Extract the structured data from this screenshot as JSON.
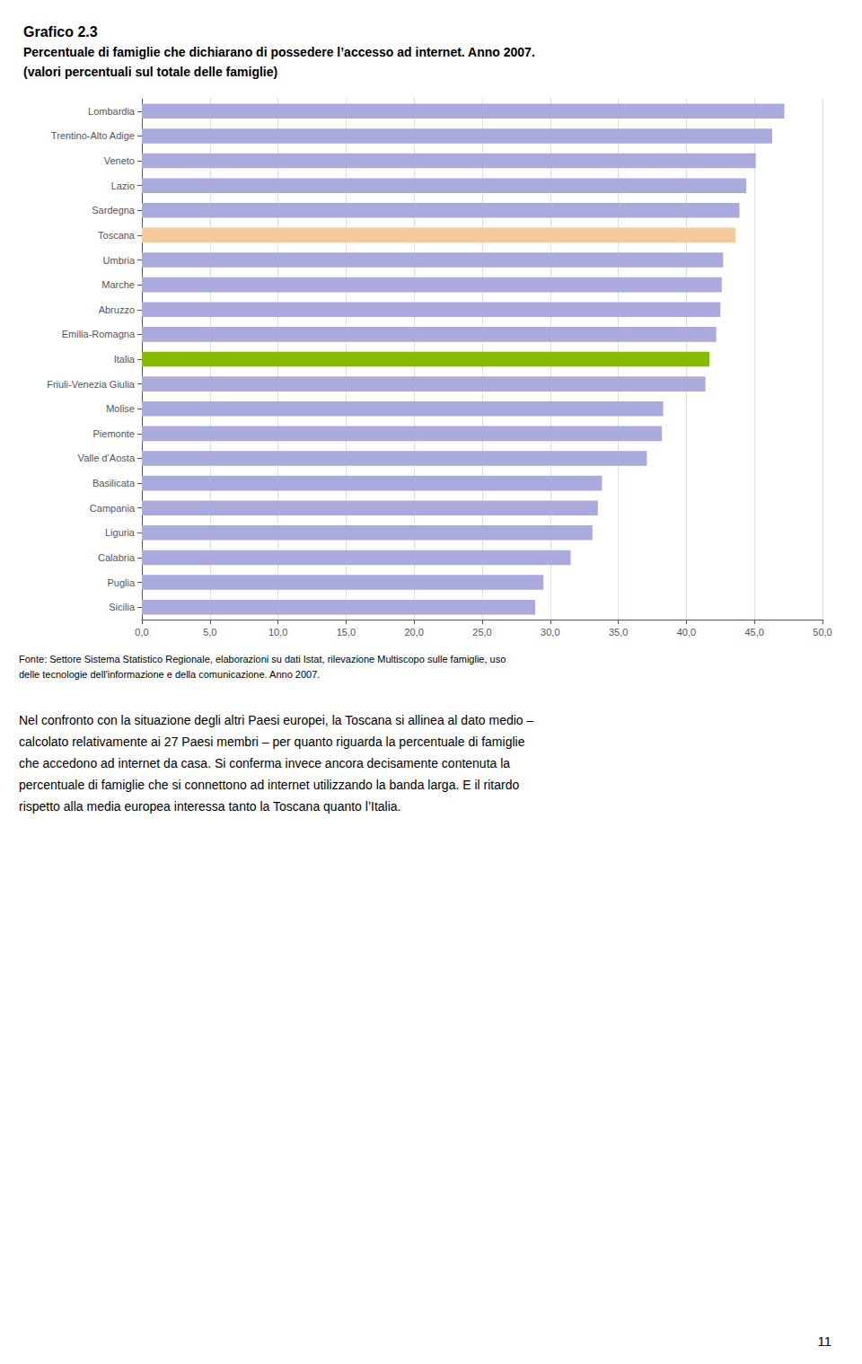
{
  "chart_data": {
    "type": "bar",
    "orientation": "horizontal",
    "title": "Grafico 2.3",
    "subtitle": [
      "Percentuale di famiglie che dichiarano di possedere l’accesso ad internet. Anno 2007.",
      "(valori percentuali sul totale delle famiglie)"
    ],
    "annotations": [
      "Fonte: Settore Sistema Statistico Regionale, elaborazioni su dati Istat, rilevazione Multiscopo sulle famiglie, uso\ndelle tecnologie dell'informazione e della comunicazione. Anno 2007.",
      "Nel confronto con la situazione degli altri Paesi europei, la Toscana si allinea al dato medio –\ncalcolato relativamente ai 27 Paesi membri – per quanto riguarda la percentuale di famiglie\nche accedono ad internet da casa. Si conferma invece ancora decisamente contenuta la\npercentuale di famiglie che si connettono ad internet utilizzando la banda larga. E il ritardo\nrispetto alla media europea interessa tanto la Toscana quanto l’Italia.",
      "11"
    ],
    "categories": [
      "Lombardia",
      "Trentino-Alto Adige",
      "Veneto",
      "Lazio",
      "Sardegna",
      "Toscana",
      "Umbria",
      "Marche",
      "Abruzzo",
      "Emilia-Romagna",
      "Italia",
      "Friuli-Venezia Giulia",
      "Molise",
      "Piemonte",
      "Valle d’Aosta",
      "Basilicata",
      "Campania",
      "Liguria",
      "Calabria",
      "Puglia",
      "Sicilia"
    ],
    "values": [
      47.2,
      46.3,
      45.1,
      44.4,
      43.9,
      43.6,
      42.7,
      42.6,
      42.5,
      42.2,
      41.7,
      41.4,
      38.3,
      38.2,
      37.1,
      33.8,
      33.5,
      33.1,
      31.5,
      29.5,
      28.9
    ],
    "colors": [
      "#aaaadd",
      "#aaaadd",
      "#aaaadd",
      "#aaaadd",
      "#aaaadd",
      "#f5c99a",
      "#aaaadd",
      "#aaaadd",
      "#aaaadd",
      "#aaaadd",
      "#88bb00",
      "#aaaadd",
      "#aaaadd",
      "#aaaadd",
      "#aaaadd",
      "#aaaadd",
      "#aaaadd",
      "#aaaadd",
      "#aaaadd",
      "#aaaadd",
      "#aaaadd"
    ],
    "xlim": [
      0,
      50
    ],
    "xticks": [
      {
        "value": 0,
        "label": "0,0"
      },
      {
        "value": 5,
        "label": "5,0"
      },
      {
        "value": 10,
        "label": "10,0"
      },
      {
        "value": 15,
        "label": "15,0"
      },
      {
        "value": 20,
        "label": "20,0"
      },
      {
        "value": 25,
        "label": "25,0"
      },
      {
        "value": 30,
        "label": "30,0"
      },
      {
        "value": 35,
        "label": "35,0"
      },
      {
        "value": 40,
        "label": "40,0"
      },
      {
        "value": 45,
        "label": "45,0"
      },
      {
        "value": 50,
        "label": "50,0"
      }
    ],
    "grid": true
  }
}
